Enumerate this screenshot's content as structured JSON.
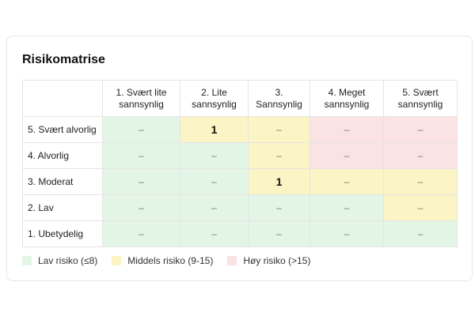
{
  "title": "Risikomatrise",
  "columns": [
    {
      "line1": "1. Svært lite",
      "line2": "sannsynlig"
    },
    {
      "line1": "2. Lite",
      "line2": "sannsynlig"
    },
    {
      "line1": "3.",
      "line2": "Sannsynlig"
    },
    {
      "line1": "4. Meget",
      "line2": "sannsynlig"
    },
    {
      "line1": "5. Svært",
      "line2": "sannsynlig"
    }
  ],
  "rows": [
    {
      "label": "5. Svært alvorlig",
      "cells": [
        "–",
        "1",
        "–",
        "–",
        "–"
      ],
      "levels": [
        "low",
        "mid",
        "mid",
        "high",
        "high"
      ]
    },
    {
      "label": "4. Alvorlig",
      "cells": [
        "–",
        "–",
        "–",
        "–",
        "–"
      ],
      "levels": [
        "low",
        "low",
        "mid",
        "high",
        "high"
      ]
    },
    {
      "label": "3. Moderat",
      "cells": [
        "–",
        "–",
        "1",
        "–",
        "–"
      ],
      "levels": [
        "low",
        "low",
        "mid",
        "mid",
        "mid"
      ]
    },
    {
      "label": "2. Lav",
      "cells": [
        "–",
        "–",
        "–",
        "–",
        "–"
      ],
      "levels": [
        "low",
        "low",
        "low",
        "low",
        "mid"
      ]
    },
    {
      "label": "1. Ubetydelig",
      "cells": [
        "–",
        "–",
        "–",
        "–",
        "–"
      ],
      "levels": [
        "low",
        "low",
        "low",
        "low",
        "low"
      ]
    }
  ],
  "legend": [
    {
      "label": "Lav risiko (≤8)",
      "level": "low",
      "color": "#e3f6e6"
    },
    {
      "label": "Middels risiko (9-15)",
      "level": "mid",
      "color": "#fbf4c4"
    },
    {
      "label": "Høy risiko (>15)",
      "level": "high",
      "color": "#fbe3e3"
    }
  ]
}
